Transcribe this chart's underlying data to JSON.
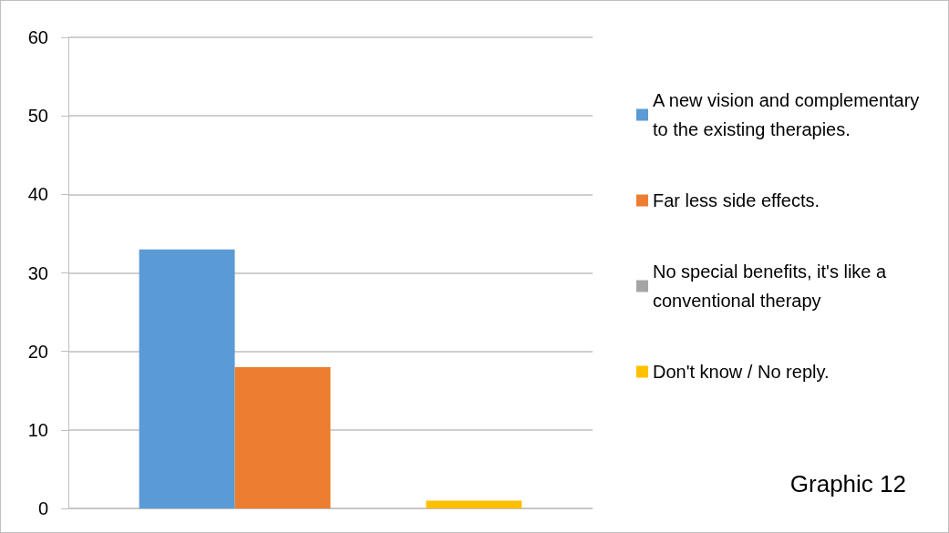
{
  "chart_data": {
    "type": "bar",
    "categories": [
      null
    ],
    "series": [
      {
        "name": "A new vision and complementary to the existing therapies.",
        "color": "#5b9bd5",
        "values": [
          33
        ]
      },
      {
        "name": "Far less side effects.",
        "color": "#ed7d31",
        "values": [
          18
        ]
      },
      {
        "name": "No special benefits, it's like a conventional therapy",
        "color": "#a5a5a5",
        "values": [
          0
        ]
      },
      {
        "name": "Don't know / No reply.",
        "color": "#ffc000",
        "values": [
          1
        ]
      }
    ],
    "ylim": [
      0,
      60
    ],
    "yticks": [
      0,
      10,
      20,
      30,
      40,
      50,
      60
    ],
    "grid": "y",
    "legend": "right",
    "annotations": [
      "Graphic 12"
    ]
  }
}
